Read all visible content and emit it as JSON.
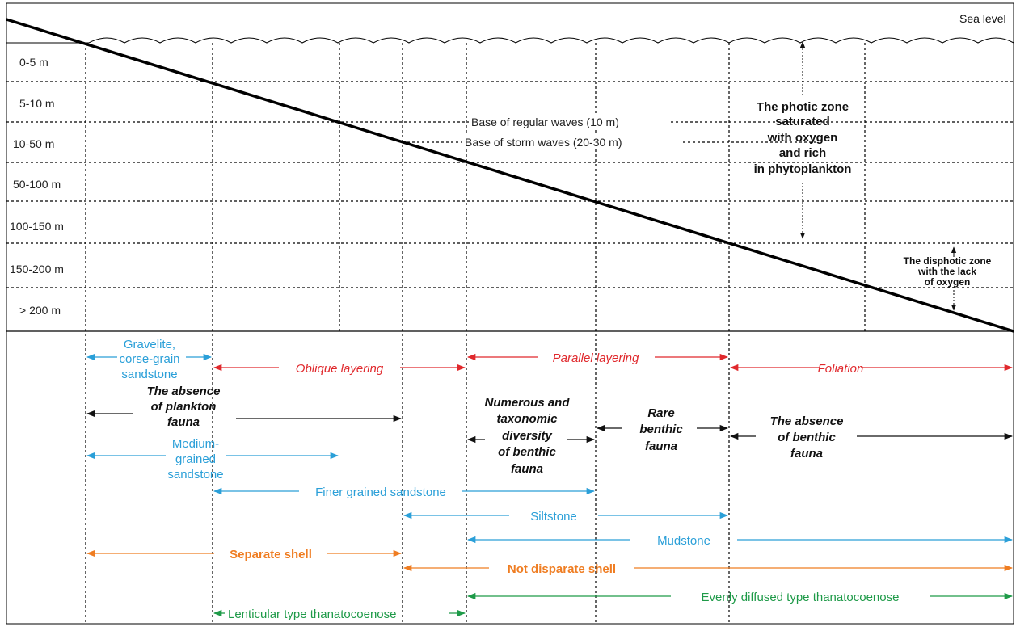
{
  "title": "",
  "sea_level": "Sea level",
  "depth_labels": [
    "0-5 m",
    "5-10 m",
    "10-50 m",
    "50-100 m",
    "100-150 m",
    "150-200 m",
    "> 200 m"
  ],
  "wave_bases": [
    "Base of regular waves (10 m)",
    "Base of storm waves (20-30 m)"
  ],
  "zones": {
    "photic": [
      "The photic zone",
      "saturated",
      "with oxygen",
      "and rich",
      "in phytoplankton"
    ],
    "disphotic": [
      "The disphotic zone",
      "with the lack",
      "of oxygen"
    ]
  },
  "facies": {
    "gravelite": [
      "Gravelite,",
      "corse-grain",
      "sandstone"
    ],
    "oblique_layering": "Oblique layering",
    "parallel_layering": "Parallel layering",
    "foliation": "Foliation",
    "absence_plankton": [
      "The absence",
      "of plankton",
      "fauna"
    ],
    "numerous_benthic": [
      "Numerous and",
      "taxonomic",
      "diversity",
      "of benthic",
      "fauna"
    ],
    "rare_benthic": [
      "Rare",
      "benthic",
      "fauna"
    ],
    "absence_benthic": [
      "The absence",
      "of benthic",
      "fauna"
    ],
    "medium_sandstone": [
      "Medium-",
      "grained",
      "sandstone"
    ],
    "finer_sandstone": "Finer grained sandstone",
    "siltstone": "Siltstone",
    "mudstone": "Mudstone",
    "separate_shell": "Separate  shell",
    "not_disparate_shell": "Not disparate shell",
    "lenticular": "Lenticular type thanatocoenose",
    "evenly_diffused": "Evenly diffused type thanatocoenose"
  },
  "colors": {
    "blue": "#2a9fd8",
    "red": "#e0282c",
    "orange": "#ef7d22",
    "green": "#1e9a48",
    "black": "#111111"
  }
}
